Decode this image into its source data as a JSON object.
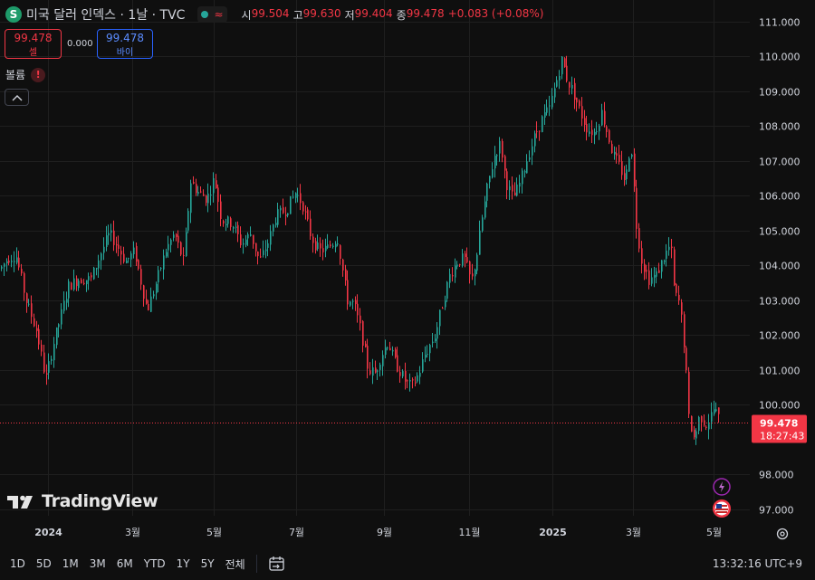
{
  "header": {
    "symbol_icon": "S",
    "title": "미국 달러 인덱스 · 1날 · TVC",
    "status": {
      "dot": "green-dot-icon",
      "wave": "≈"
    },
    "ohlc": [
      {
        "label": "시",
        "value": "99.504"
      },
      {
        "label": "고",
        "value": "99.630"
      },
      {
        "label": "저",
        "value": "99.404"
      },
      {
        "label": "종",
        "value": "99.478"
      }
    ],
    "change": "+0.083 (+0.08%)"
  },
  "trade": {
    "sell_price": "99.478",
    "sell_label": "셀",
    "spread": "0.000",
    "buy_price": "99.478",
    "buy_label": "바이"
  },
  "volume": {
    "label": "볼륨",
    "warning": "!"
  },
  "brand": {
    "name": "TradingView"
  },
  "colors": {
    "up": "#26a69a",
    "down": "#f23645",
    "bg": "#0f0f0f",
    "grid": "#1f1f1f",
    "buy": "#2962ff"
  },
  "toolbar": {
    "timeframes": [
      "1D",
      "5D",
      "1M",
      "3M",
      "6M",
      "YTD",
      "1Y",
      "5Y",
      "전체"
    ],
    "clock": "13:32:16 UTC+9"
  },
  "chart_data": {
    "type": "candlestick",
    "title": "미국 달러 인덱스",
    "y_ticks": [
      "111.000",
      "110.000",
      "109.000",
      "108.000",
      "107.000",
      "106.000",
      "105.000",
      "104.000",
      "103.000",
      "102.000",
      "101.000",
      "100.000",
      "98.000",
      "97.000"
    ],
    "ylim": [
      96.6,
      111.4
    ],
    "x_ticks": [
      "2024",
      "3월",
      "5월",
      "7월",
      "9월",
      "11월",
      "2025",
      "3월",
      "5월"
    ],
    "last_price": {
      "value": 99.478,
      "label": "99.478",
      "countdown": "18:27:43"
    },
    "grid": true,
    "path_points": [
      [
        0,
        103.9
      ],
      [
        8,
        104.2
      ],
      [
        17,
        104.3
      ],
      [
        28,
        103.0
      ],
      [
        40,
        102.1
      ],
      [
        50,
        100.7
      ],
      [
        57,
        101.6
      ],
      [
        66,
        102.5
      ],
      [
        75,
        103.4
      ],
      [
        86,
        103.6
      ],
      [
        100,
        103.6
      ],
      [
        110,
        104.3
      ],
      [
        120,
        104.9
      ],
      [
        128,
        104.6
      ],
      [
        138,
        104.1
      ],
      [
        148,
        104.4
      ],
      [
        156,
        103.4
      ],
      [
        162,
        102.7
      ],
      [
        172,
        103.5
      ],
      [
        182,
        104.4
      ],
      [
        192,
        104.9
      ],
      [
        202,
        104.1
      ],
      [
        210,
        106.4
      ],
      [
        218,
        106.1
      ],
      [
        228,
        105.9
      ],
      [
        236,
        106.5
      ],
      [
        244,
        105.3
      ],
      [
        256,
        105.2
      ],
      [
        266,
        104.6
      ],
      [
        276,
        104.9
      ],
      [
        286,
        104.1
      ],
      [
        296,
        104.7
      ],
      [
        304,
        105.4
      ],
      [
        316,
        105.6
      ],
      [
        326,
        106.1
      ],
      [
        334,
        105.7
      ],
      [
        343,
        104.8
      ],
      [
        352,
        104.4
      ],
      [
        362,
        104.5
      ],
      [
        372,
        104.8
      ],
      [
        378,
        103.8
      ],
      [
        383,
        103.0
      ],
      [
        390,
        102.9
      ],
      [
        398,
        102.1
      ],
      [
        406,
        101.0
      ],
      [
        414,
        100.9
      ],
      [
        420,
        101.4
      ],
      [
        428,
        101.8
      ],
      [
        434,
        101.3
      ],
      [
        440,
        101.0
      ],
      [
        446,
        100.7
      ],
      [
        454,
        100.5
      ],
      [
        462,
        100.9
      ],
      [
        468,
        101.4
      ],
      [
        474,
        101.7
      ],
      [
        480,
        102.0
      ],
      [
        488,
        102.9
      ],
      [
        496,
        103.7
      ],
      [
        504,
        104.1
      ],
      [
        512,
        104.2
      ],
      [
        520,
        103.5
      ],
      [
        526,
        104.3
      ],
      [
        532,
        105.4
      ],
      [
        538,
        106.3
      ],
      [
        546,
        107.2
      ],
      [
        552,
        107.5
      ],
      [
        558,
        106.4
      ],
      [
        566,
        105.9
      ],
      [
        574,
        106.4
      ],
      [
        582,
        107.1
      ],
      [
        590,
        107.7
      ],
      [
        598,
        108.2
      ],
      [
        606,
        108.5
      ],
      [
        614,
        109.3
      ],
      [
        620,
        109.9
      ],
      [
        626,
        109.3
      ],
      [
        632,
        109.0
      ],
      [
        640,
        108.4
      ],
      [
        648,
        107.9
      ],
      [
        656,
        107.8
      ],
      [
        664,
        108.4
      ],
      [
        670,
        107.8
      ],
      [
        676,
        107.2
      ],
      [
        684,
        106.8
      ],
      [
        690,
        106.4
      ],
      [
        696,
        107.6
      ],
      [
        702,
        105.2
      ],
      [
        708,
        104.1
      ],
      [
        716,
        103.6
      ],
      [
        724,
        103.7
      ],
      [
        732,
        104.2
      ],
      [
        740,
        104.6
      ],
      [
        744,
        103.2
      ],
      [
        750,
        102.9
      ],
      [
        756,
        101.4
      ],
      [
        760,
        99.6
      ],
      [
        766,
        99.0
      ],
      [
        772,
        99.7
      ],
      [
        780,
        99.4
      ],
      [
        788,
        99.9
      ],
      [
        795,
        99.478
      ]
    ]
  }
}
